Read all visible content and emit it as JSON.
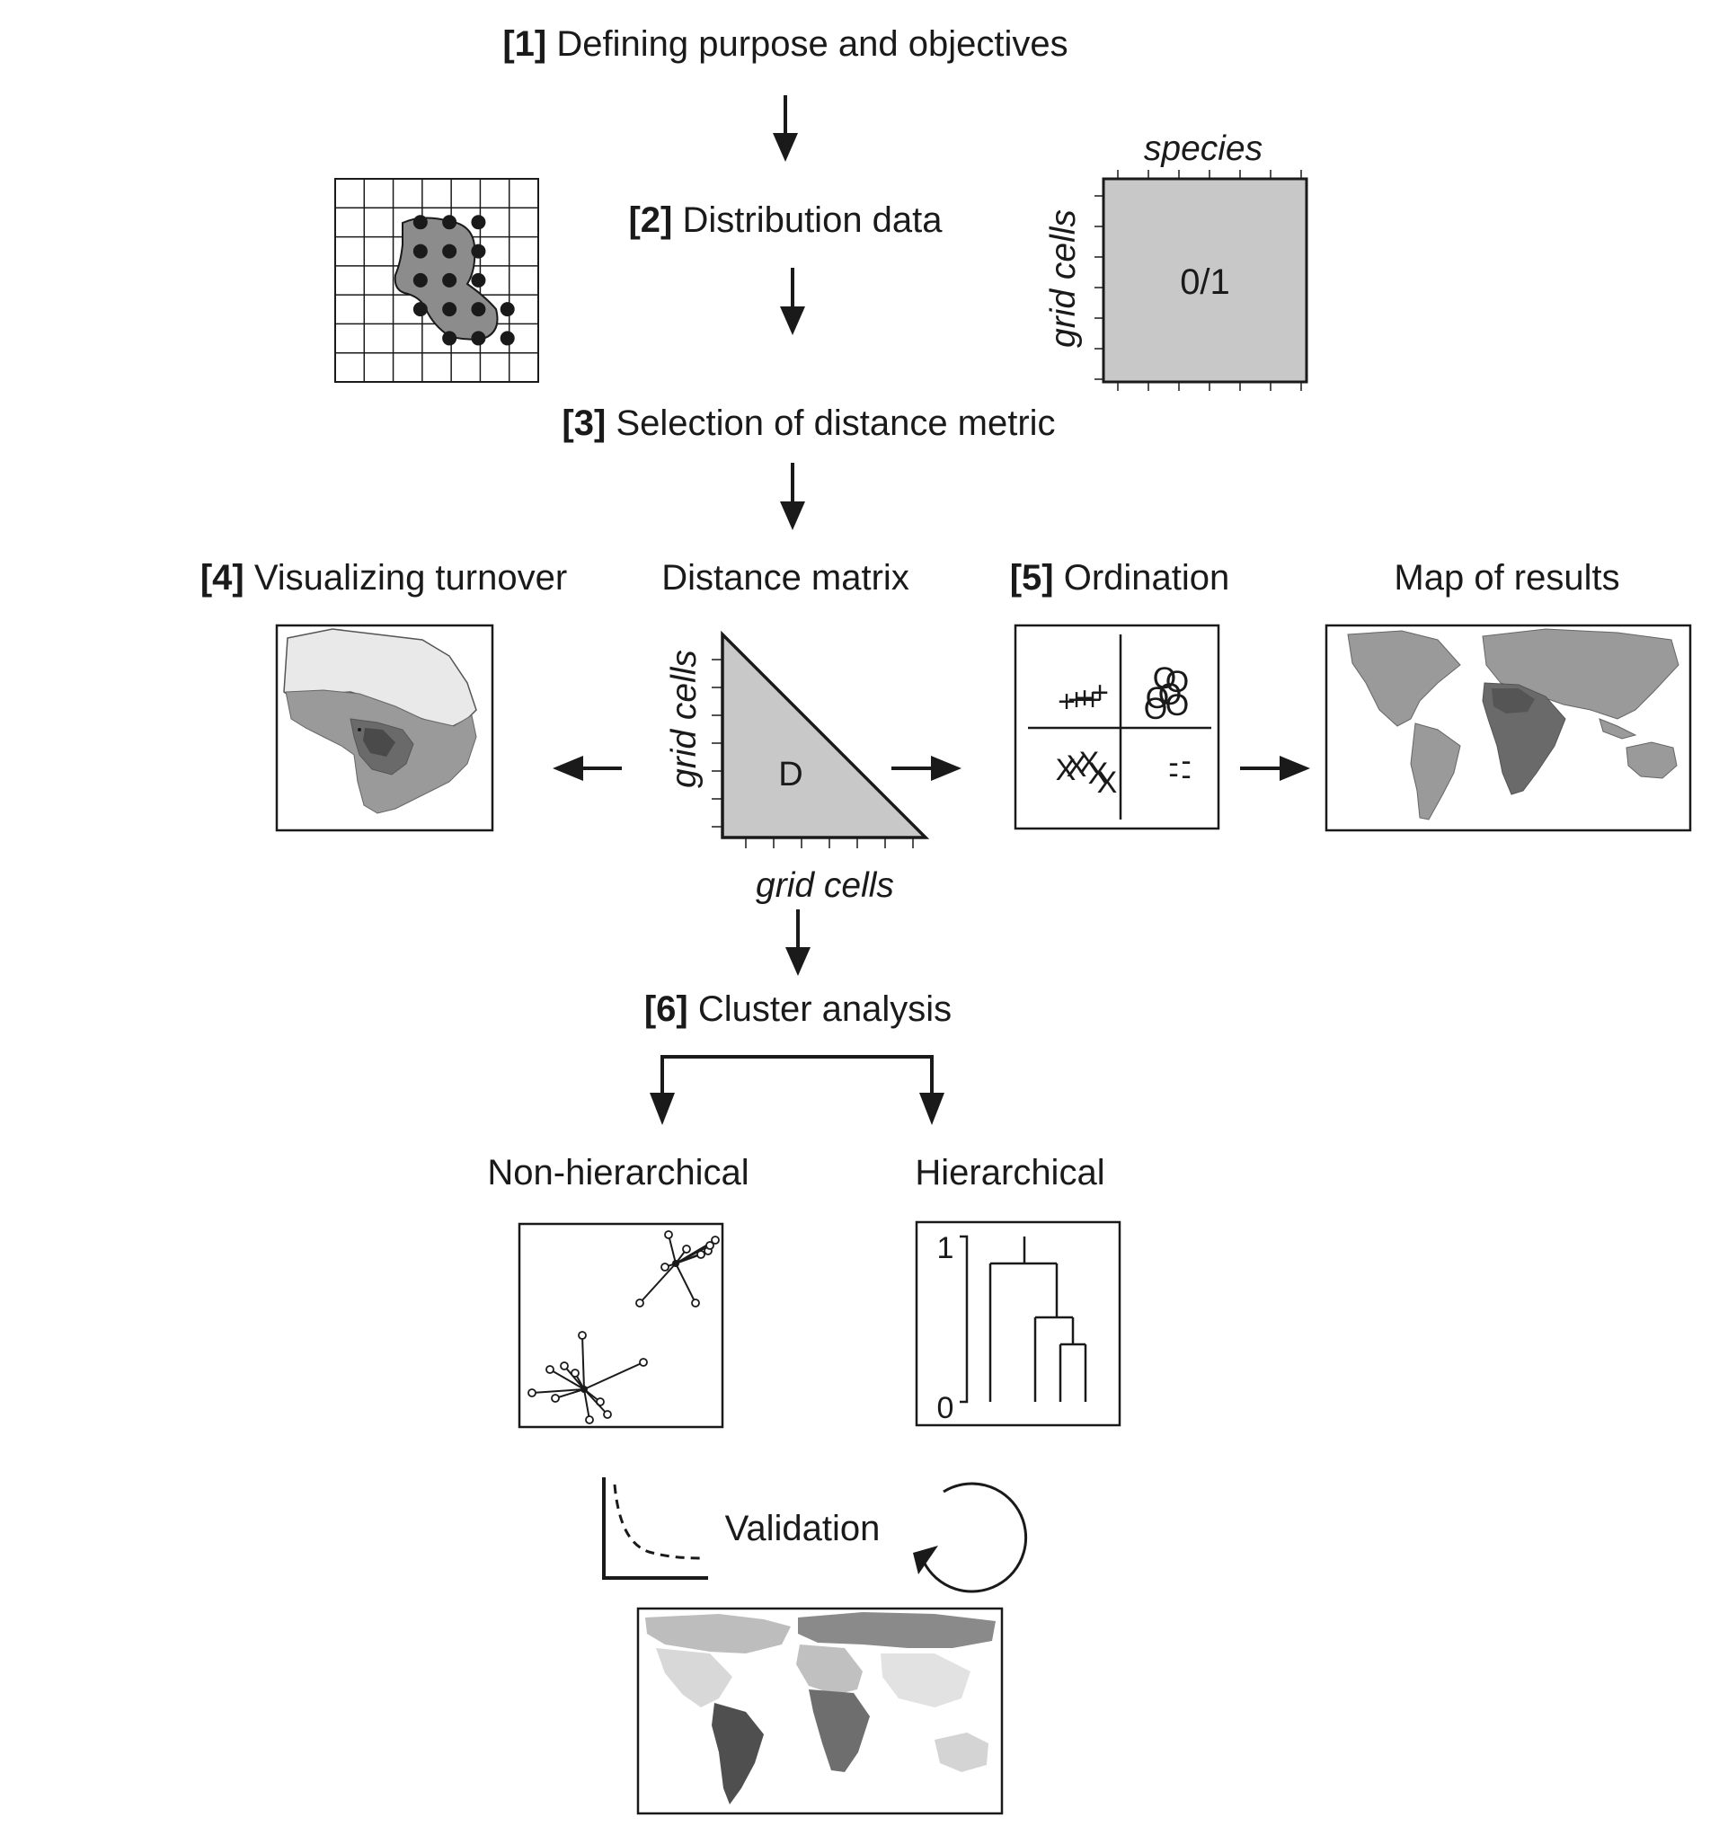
{
  "steps": [
    {
      "num": "[1]",
      "title": "Defining purpose and objectives"
    },
    {
      "num": "[2]",
      "title": "Distribution data"
    },
    {
      "num": "[3]",
      "title": "Selection of distance metric"
    },
    {
      "num": "[4]",
      "title": "Visualizing turnover"
    },
    {
      "num": "[5]",
      "title": "Ordination"
    },
    {
      "num": "[6]",
      "title": "Cluster analysis"
    }
  ],
  "labels": {
    "distance_matrix": "Distance matrix",
    "map_of_results": "Map of results",
    "non_hierarchical": "Non-hierarchical",
    "hierarchical": "Hierarchical",
    "validation": "Validation"
  },
  "presence_matrix": {
    "column_label": "species",
    "row_label": "grid cells",
    "cell_value": "0/1"
  },
  "distance_matrix": {
    "row_label": "grid cells",
    "column_label": "grid cells",
    "cell_value": "D"
  },
  "ordination": {
    "markers": [
      "+",
      "+",
      "+",
      "+",
      "+",
      "O",
      "O",
      "O",
      "O",
      "O",
      "O",
      "X",
      "X",
      "X",
      "X",
      "X",
      "-",
      "-",
      "-",
      "-"
    ]
  },
  "dendrogram": {
    "ytick_top": "1",
    "ytick_bottom": "0"
  },
  "colors": {
    "ink": "#1a1a1a",
    "panel_gray": "#c8c8c8",
    "blob_gray": "#8c8c8c"
  }
}
